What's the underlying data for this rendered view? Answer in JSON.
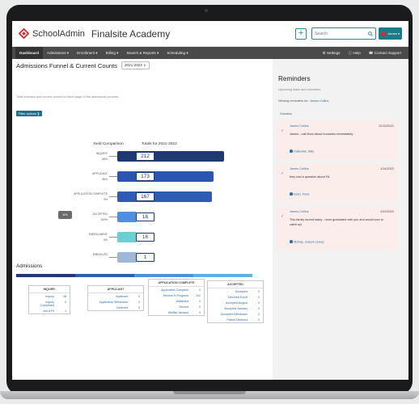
{
  "app": {
    "logo": "SchoolAdmin",
    "school": "Finalsite Academy",
    "search_placeholder": "Search",
    "user_label": "James"
  },
  "nav": {
    "items": [
      "Dashboard",
      "Admissions ▾",
      "Enrollment ▾",
      "Billing ▾",
      "Search & Reports ▾",
      "Scheduling ▾"
    ],
    "right": [
      "⚙ Settings",
      "ⓘ Help",
      "☎ Contact Support"
    ]
  },
  "funnel": {
    "title": "Admissions Funnel & Current Counts",
    "year": "2021-2022 ∨",
    "subtitle": "Total numbers and current counts for each stage of the admissions process",
    "filter_btn": "Filter options ❯",
    "yield_header": "Yield Comparison",
    "totals_header": "Totals for 2021-2022",
    "stages": [
      {
        "label": "INQUIRY",
        "pct": "85%",
        "count": "212",
        "value": 212,
        "color": "#1e3a6e"
      },
      {
        "label": "APPLICANT",
        "pct": "96%",
        "count": "173",
        "value": 173,
        "color": "#2a55b0"
      },
      {
        "label": "APPLICATION COMPLETE",
        "pct": "9%",
        "count": "167",
        "value": 167,
        "color": "#2f5bb5"
      },
      {
        "label": "ACCEPTED",
        "pct": "100%",
        "count": "16",
        "value": 16,
        "color": "#4f8fe0"
      },
      {
        "label": "ENROLLMENT",
        "pct": "6%",
        "count": "16",
        "value": 16,
        "color": "#6ad0d4"
      },
      {
        "label": "ENROLLED",
        "pct": "",
        "count": "1",
        "value": 1,
        "color": "#9fb8d6"
      }
    ],
    "overall_pct": "6%"
  },
  "admissions": {
    "title": "Admissions",
    "bar_colors": [
      "#1e3a6e",
      "#2f5bb5",
      "#4f8fe0",
      "#5bb0e8"
    ],
    "cards": [
      {
        "header": "INQUIRY",
        "rows": [
          [
            "Inquiry",
            "28"
          ],
          [
            "Inquiry Completed",
            "0"
          ],
          [
            "Not A Fit",
            "1"
          ]
        ]
      },
      {
        "header": "APPLICANT",
        "rows": [
          [
            "Applicant",
            "0"
          ],
          [
            "Application Withdrawn",
            "0"
          ],
          [
            "Deferred",
            "0"
          ]
        ]
      },
      {
        "header": "APPLICATION COMPLETE",
        "rows": [
          [
            "Application Complete",
            "0"
          ],
          [
            "Review In Progress",
            "151"
          ],
          [
            "Waitlisted",
            "0"
          ],
          [
            "Denied",
            "0"
          ],
          [
            "Waitlist January",
            "0"
          ]
        ]
      },
      {
        "header": "ACCEPTED",
        "rows": [
          [
            "Accepted",
            "0"
          ],
          [
            "Declined Enroll",
            "0"
          ],
          [
            "Accepted August",
            "0"
          ],
          [
            "Accepted January",
            "0"
          ],
          [
            "Accepted Withdrawn",
            "0"
          ],
          [
            "Parent Declined",
            "0"
          ]
        ]
      }
    ]
  },
  "reminders": {
    "title": "Reminders",
    "subtitle": "Upcoming tasks and reminders",
    "viewing_prefix": "Viewing reminders for:",
    "viewing_name": "James Collins",
    "overdue_label": "Overdue",
    "items": [
      {
        "name": "James Collins",
        "date": "12/10/2021",
        "text": "James - call Mom about bursaries immediately",
        "link": "DeBoville, Billy"
      },
      {
        "name": "James Collins",
        "date": "1/14/2022",
        "text": "they had a question about FA",
        "link": "Elder, Flora"
      },
      {
        "name": "James Collins",
        "date": "1/22/2022",
        "text": "This family toured today - mom graduated with you and would love to catch up!",
        "link": "McNay, Joseph (Joey)"
      }
    ]
  },
  "colors": {
    "accent": "#1e7a8a",
    "brand": "#d0312d",
    "nav": "#4a4a4a",
    "sidebar": "#f2f2f2",
    "reminder_card": "#fbeeea"
  }
}
